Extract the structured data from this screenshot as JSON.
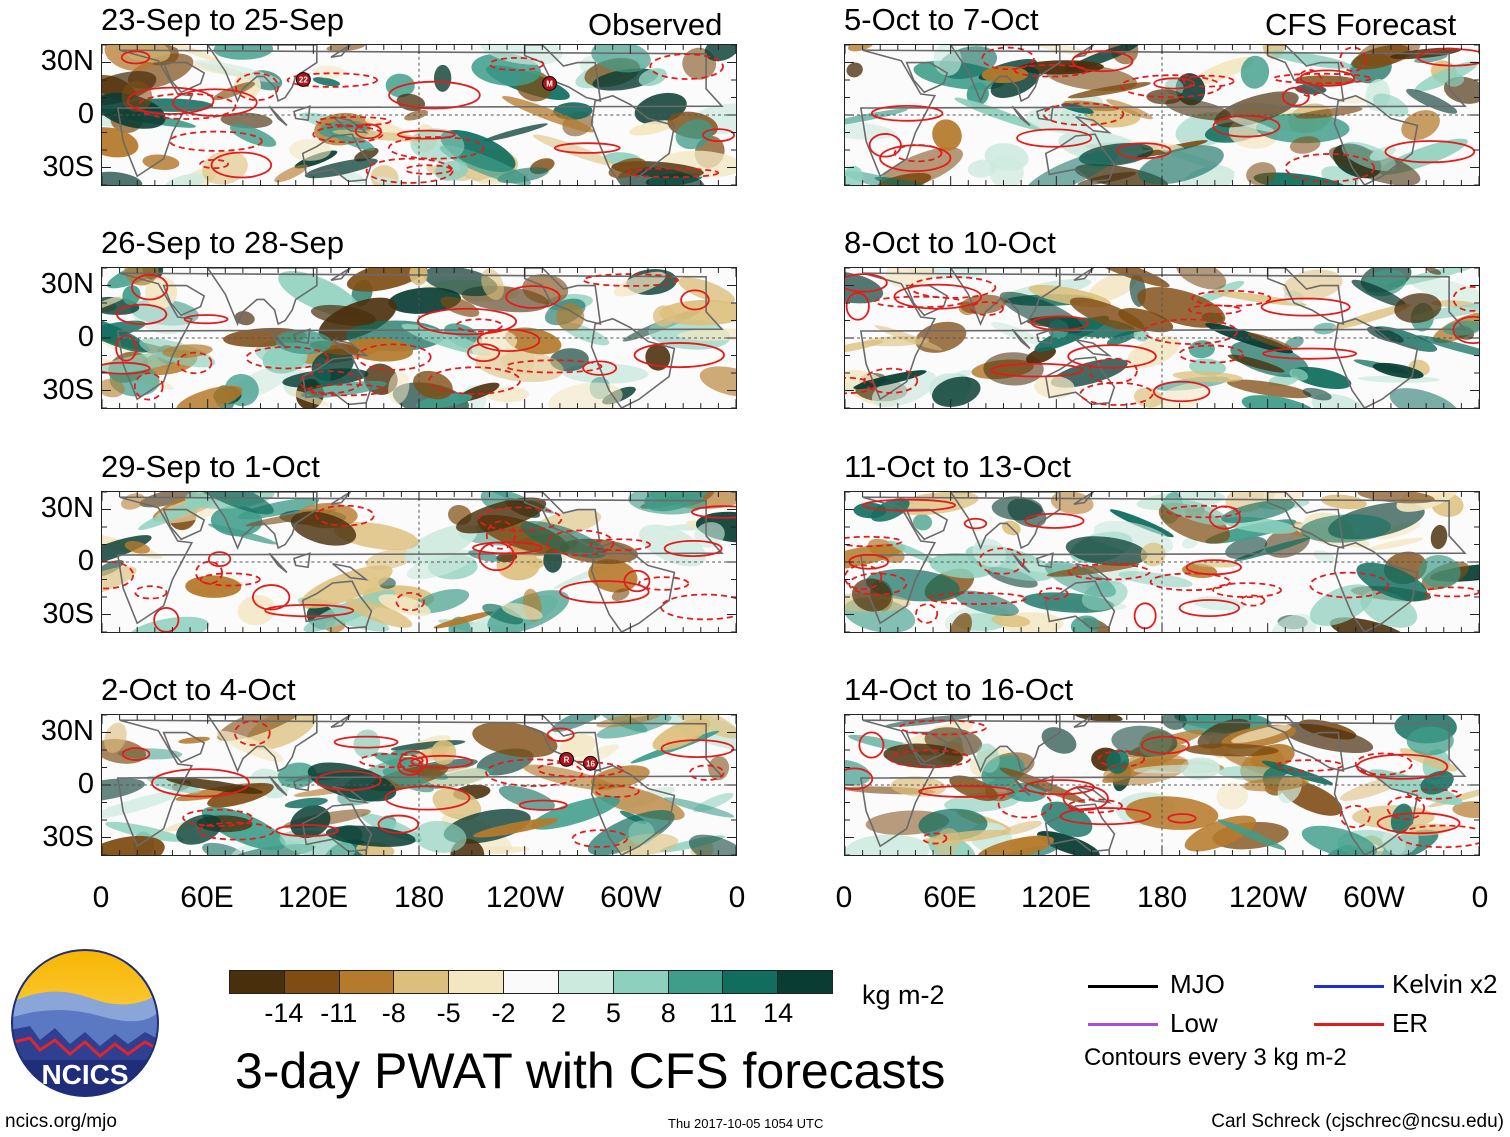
{
  "figure": {
    "title": "3-day PWAT with CFS forecasts",
    "observed_label": "Observed",
    "forecast_label": "CFS Forecast"
  },
  "panels_left": [
    {
      "title": "23-Sep to 25-Sep",
      "storm_labels": [
        "22",
        "M"
      ]
    },
    {
      "title": "26-Sep to 28-Sep",
      "storm_labels": []
    },
    {
      "title": "29-Sep to 1-Oct",
      "storm_labels": []
    },
    {
      "title": "2-Oct to 4-Oct",
      "storm_labels": [
        "R",
        "16"
      ]
    }
  ],
  "panels_right": [
    {
      "title": "5-Oct to 7-Oct"
    },
    {
      "title": "8-Oct to 10-Oct"
    },
    {
      "title": "11-Oct to 13-Oct"
    },
    {
      "title": "14-Oct to 16-Oct"
    }
  ],
  "lat_labels": [
    "30N",
    "0",
    "30S"
  ],
  "lon_labels": [
    "0",
    "60E",
    "120E",
    "180",
    "120W",
    "60W",
    "0"
  ],
  "colorbar": {
    "ticks": [
      "-14",
      "-11",
      "-8",
      "-5",
      "-2",
      "2",
      "5",
      "8",
      "11",
      "14"
    ],
    "colors": [
      "#4a2f0c",
      "#7f4d14",
      "#b57a2c",
      "#dcbf7c",
      "#f3e7c2",
      "#fafafa",
      "#cdeadf",
      "#8dd0bd",
      "#3f9d8a",
      "#116e5f",
      "#093d33"
    ],
    "units": "kg m-2"
  },
  "legend": [
    {
      "label": "MJO",
      "color": "#000000"
    },
    {
      "label": "Kelvin x2",
      "color": "#1f2fd0"
    },
    {
      "label": "Low",
      "color": "#a64fdc"
    },
    {
      "label": "ER",
      "color": "#e41b1b"
    }
  ],
  "contour_note": "Contours every 3 kg m-2",
  "logo_text": "NCICS",
  "footer": {
    "left": "ncics.org/mjo",
    "middle": "Thu 2017-10-05 1054 UTC",
    "right": "Carl Schreck (cjschrec@ncsu.edu)"
  }
}
